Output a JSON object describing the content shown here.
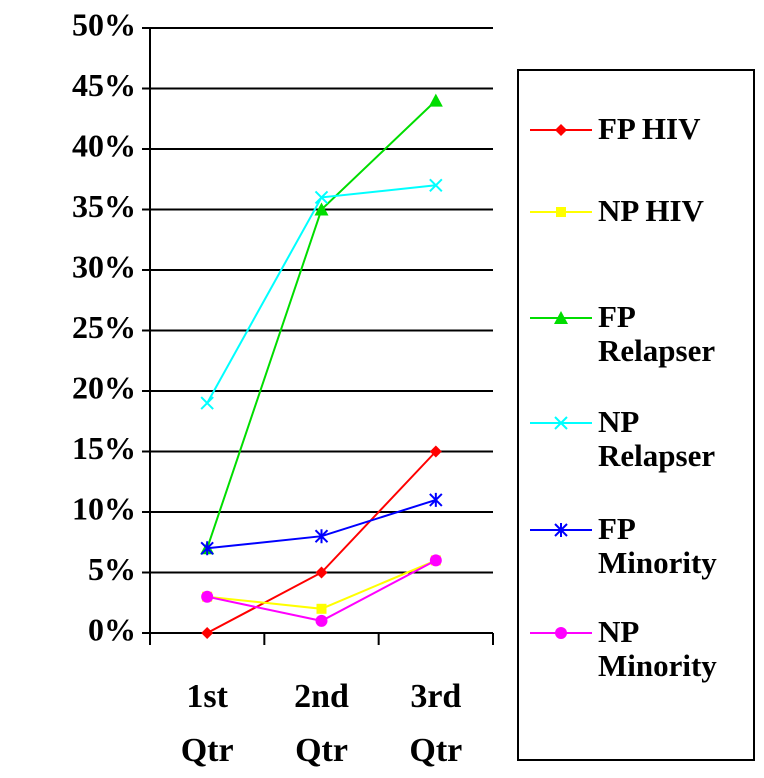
{
  "chart_data": {
    "type": "line",
    "categories": [
      "1st Qtr",
      "2nd Qtr",
      "3rd Qtr"
    ],
    "series": [
      {
        "name": "FP HIV",
        "color": "#ff0000",
        "marker": "diamond",
        "values": [
          0,
          5,
          15
        ]
      },
      {
        "name": "NP HIV",
        "color": "#ffff00",
        "marker": "square",
        "values": [
          3,
          2,
          6
        ]
      },
      {
        "name": "FP Relapser",
        "color": "#00dd00",
        "marker": "triangle",
        "values": [
          7,
          35,
          44
        ]
      },
      {
        "name": "NP Relapser",
        "color": "#00ffff",
        "marker": "x",
        "values": [
          19,
          36,
          37
        ]
      },
      {
        "name": "FP Minority",
        "color": "#0000ff",
        "marker": "star",
        "values": [
          7,
          8,
          11
        ]
      },
      {
        "name": "NP Minority",
        "color": "#ff00ff",
        "marker": "circle",
        "values": [
          3,
          1,
          6
        ]
      }
    ],
    "ylim": [
      0,
      50
    ],
    "yticks": [
      {
        "value": 0,
        "label": "0%"
      },
      {
        "value": 5,
        "label": "5%"
      },
      {
        "value": 10,
        "label": "10%"
      },
      {
        "value": 15,
        "label": "15%"
      },
      {
        "value": 20,
        "label": "20%"
      },
      {
        "value": 25,
        "label": "25%"
      },
      {
        "value": 30,
        "label": "30%"
      },
      {
        "value": 35,
        "label": "35%"
      },
      {
        "value": 40,
        "label": "40%"
      },
      {
        "value": 45,
        "label": "45%"
      },
      {
        "value": 50,
        "label": "50%"
      }
    ],
    "grid": true,
    "legend": "right"
  }
}
